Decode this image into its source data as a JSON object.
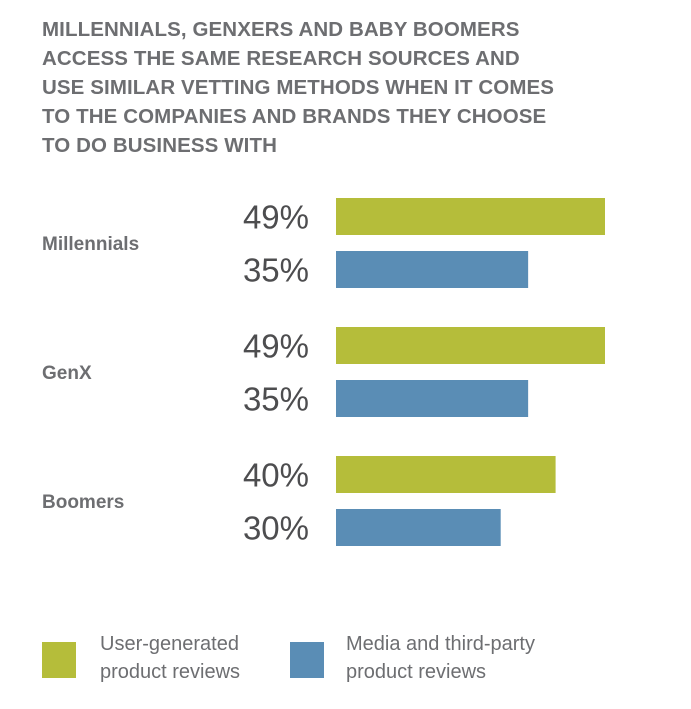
{
  "title_lines": [
    "MILLENNIALS, GENXERS AND BABY BOOMERS",
    "ACCESS THE SAME RESEARCH SOURCES AND",
    "USE SIMILAR VETTING METHODS WHEN IT COMES",
    "TO THE COMPANIES AND BRANDS THEY CHOOSE",
    "TO DO BUSINESS WITH"
  ],
  "colors": {
    "user_generated": "#b5bd3a",
    "media": "#5a8db5",
    "text": "#6d6e71",
    "value_text": "#4d4d4f"
  },
  "legend": {
    "user_generated": [
      "User-generated",
      "product reviews"
    ],
    "media": [
      "Media and third-party",
      "product reviews"
    ]
  },
  "chart_data": {
    "type": "bar",
    "orientation": "horizontal",
    "title": "MILLENNIALS, GENXERS AND BABY BOOMERS ACCESS THE SAME RESEARCH SOURCES AND USE SIMILAR VETTING METHODS WHEN IT COMES TO THE COMPANIES AND BRANDS THEY CHOOSE TO DO BUSINESS WITH",
    "categories": [
      "Millennials",
      "GenX",
      "Boomers"
    ],
    "series": [
      {
        "name": "User-generated product reviews",
        "color": "#b5bd3a",
        "values": [
          49,
          49,
          40
        ]
      },
      {
        "name": "Media and third-party product reviews",
        "color": "#5a8db5",
        "values": [
          35,
          35,
          30
        ]
      }
    ],
    "value_labels": [
      [
        "49%",
        "49%",
        "40%"
      ],
      [
        "35%",
        "35%",
        "30%"
      ]
    ],
    "unit": "%",
    "xlim": [
      0,
      50
    ],
    "grid": false,
    "legend_position": "bottom"
  }
}
